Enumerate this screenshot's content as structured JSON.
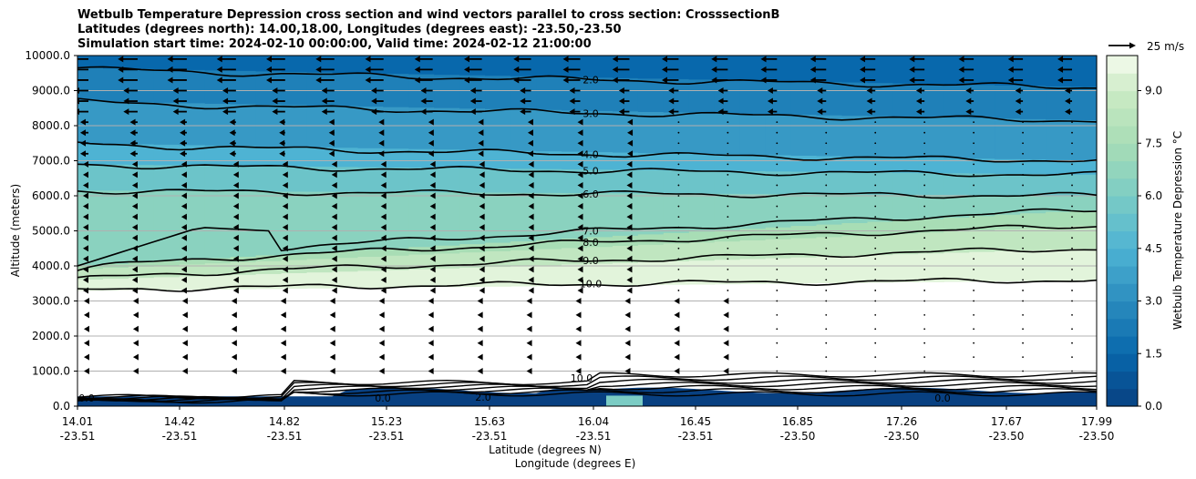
{
  "title_lines": [
    "Wetbulb Temperature Depression cross section and wind vectors parallel to cross section: CrosssectionB",
    "Latitudes (degrees north): 14.00,18.00, Longitudes (degrees east): -23.50,-23.50",
    "Simulation start time: 2024-02-10 00:00:00, Valid time: 2024-02-12 21:00:00"
  ],
  "quiver_key_label": "25 m/s",
  "chart_data": {
    "type": "contour",
    "ylabel": "Altitude (meters)",
    "xlabel_1": "Latitude (degrees N)",
    "xlabel_2": "Longitude (degrees E)",
    "ylim": [
      0,
      10000
    ],
    "yticks": [
      "0.0",
      "1000.0",
      "2000.0",
      "3000.0",
      "4000.0",
      "5000.0",
      "6000.0",
      "7000.0",
      "8000.0",
      "9000.0",
      "10000.0"
    ],
    "xtick_lat": [
      "14.01",
      "14.42",
      "14.82",
      "15.23",
      "15.63",
      "16.04",
      "16.45",
      "16.85",
      "17.26",
      "17.67",
      "17.99"
    ],
    "xtick_lon": [
      "-23.51",
      "-23.51",
      "-23.51",
      "-23.51",
      "-23.51",
      "-23.51",
      "-23.51",
      "-23.50",
      "-23.50",
      "-23.50",
      "-23.50"
    ],
    "colorbar_label": "Wetbulb Temperature Depression °C",
    "colorbar_ticks": [
      "0.0",
      "1.5",
      "3.0",
      "4.5",
      "6.0",
      "7.5",
      "9.0"
    ],
    "colorbar_range": [
      0,
      10
    ],
    "contour_labels": [
      "2.0",
      "3.0",
      "4.0",
      "5.0",
      "6.0",
      "7.0",
      "8.0",
      "9.0",
      "10.0"
    ],
    "contour_levels": [
      {
        "value": 2.0,
        "alt_left": 9650,
        "alt_right": 9100
      },
      {
        "value": 3.0,
        "alt_left": 8700,
        "alt_right": 8150
      },
      {
        "value": 4.0,
        "alt_left": 7500,
        "alt_right": 7000
      },
      {
        "value": 5.0,
        "alt_left": 6900,
        "alt_right": 6600
      },
      {
        "value": 6.0,
        "alt_left": 6150,
        "alt_right": 6000
      },
      {
        "value": 7.0,
        "alt_left": 4000,
        "alt_right": 5600
      },
      {
        "value": 8.0,
        "alt_left": 3900,
        "alt_right": 5150
      },
      {
        "value": 9.0,
        "alt_left": 3600,
        "alt_right": 4500
      },
      {
        "value": 10.0,
        "alt_left": 3300,
        "alt_right": 3600
      }
    ],
    "surface_labels": [
      "10.0",
      "0.0",
      "2.0",
      "0.0",
      "0.0"
    ],
    "wind": "westward in upper levels, weak near surface"
  }
}
